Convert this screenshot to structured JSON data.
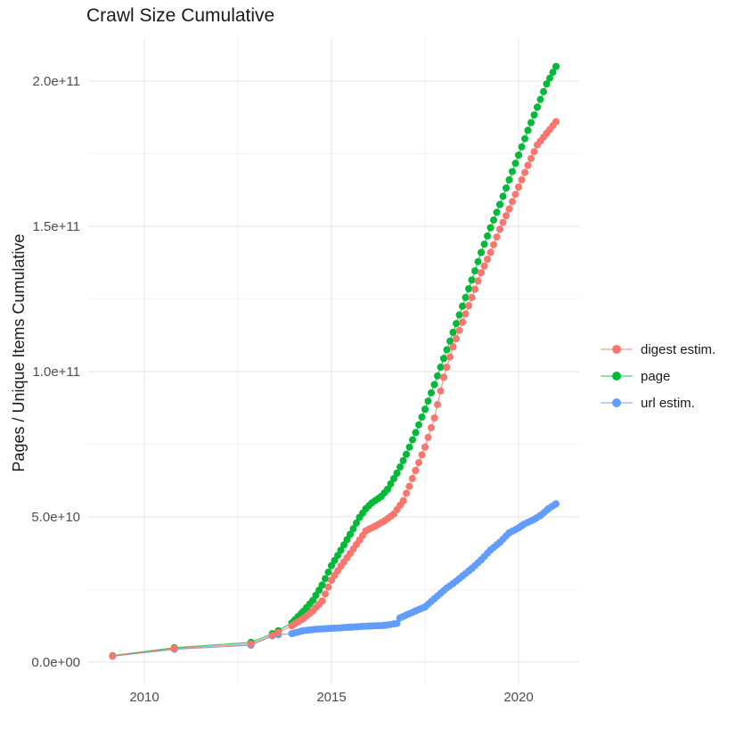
{
  "chart_data": {
    "type": "line",
    "title": "Crawl Size Cumulative",
    "xlabel": "",
    "ylabel": "Pages / Unique Items Cumulative",
    "y_value_unit": "1e9",
    "grid": true,
    "legend_position": "right",
    "x_domain": [
      2008.5,
      2021.62
    ],
    "y_domain": [
      -8,
      214.7
    ],
    "x_ticks": [
      {
        "value": 2010,
        "label": "2010"
      },
      {
        "value": 2015,
        "label": "2015"
      },
      {
        "value": 2020,
        "label": "2020"
      }
    ],
    "x_minor_ticks": [
      2012.5,
      2017.5
    ],
    "y_ticks": [
      {
        "value": 0,
        "label": "0.0e+00"
      },
      {
        "value": 50,
        "label": "5.0e+10"
      },
      {
        "value": 100,
        "label": "1.0e+11"
      },
      {
        "value": 150,
        "label": "1.5e+11"
      },
      {
        "value": 200,
        "label": "2.0e+11"
      }
    ],
    "y_minor_ticks": [
      25,
      75,
      125,
      175
    ],
    "dense_from": 2013.9,
    "dense_step": 0.08333,
    "draw_order": [
      2,
      1,
      0
    ],
    "series": [
      {
        "name": "digest estim.",
        "id": "digest-estim",
        "color": "#F8766D",
        "points": [
          [
            2009.15,
            2.1
          ],
          [
            2010.8,
            4.6
          ],
          [
            2012.85,
            6.2
          ],
          [
            2013.42,
            9.2
          ],
          [
            2013.58,
            10.2
          ],
          [
            2013.94,
            12.5
          ],
          [
            2014.25,
            15.0
          ],
          [
            2014.5,
            17.6
          ],
          [
            2014.75,
            21.0
          ],
          [
            2015.0,
            28.2
          ],
          [
            2015.25,
            33.0
          ],
          [
            2015.5,
            37.4
          ],
          [
            2015.75,
            42.0
          ],
          [
            2015.92,
            45.2
          ],
          [
            2016.17,
            46.8
          ],
          [
            2016.42,
            48.6
          ],
          [
            2016.67,
            51.0
          ],
          [
            2016.92,
            55.5
          ],
          [
            2017.08,
            60.5
          ],
          [
            2017.25,
            66.0
          ],
          [
            2017.5,
            74.0
          ],
          [
            2017.75,
            84.0
          ],
          [
            2018.0,
            98.0
          ],
          [
            2018.25,
            108.5
          ],
          [
            2018.5,
            117.0
          ],
          [
            2018.75,
            125.5
          ],
          [
            2019.0,
            134.0
          ],
          [
            2019.25,
            141.0
          ],
          [
            2019.5,
            149.0
          ],
          [
            2019.75,
            156.0
          ],
          [
            2020.0,
            163.5
          ],
          [
            2020.25,
            171.0
          ],
          [
            2020.5,
            178.0
          ],
          [
            2020.75,
            182.0
          ],
          [
            2021.0,
            186.0
          ]
        ]
      },
      {
        "name": "page",
        "id": "page",
        "color": "#00BA38",
        "points": [
          [
            2009.15,
            2.2
          ],
          [
            2010.8,
            4.9
          ],
          [
            2012.85,
            6.8
          ],
          [
            2013.42,
            9.8
          ],
          [
            2013.58,
            10.8
          ],
          [
            2013.94,
            13.5
          ],
          [
            2014.25,
            17.5
          ],
          [
            2014.5,
            21.2
          ],
          [
            2014.75,
            26.5
          ],
          [
            2015.0,
            33.2
          ],
          [
            2015.25,
            38.5
          ],
          [
            2015.5,
            44.0
          ],
          [
            2015.75,
            49.8
          ],
          [
            2015.92,
            52.8
          ],
          [
            2016.08,
            54.8
          ],
          [
            2016.33,
            57.0
          ],
          [
            2016.5,
            59.5
          ],
          [
            2016.75,
            65.0
          ],
          [
            2017.0,
            71.5
          ],
          [
            2017.25,
            79.0
          ],
          [
            2017.5,
            87.0
          ],
          [
            2017.75,
            95.5
          ],
          [
            2018.0,
            104.5
          ],
          [
            2018.25,
            113.5
          ],
          [
            2018.5,
            122.5
          ],
          [
            2018.75,
            131.5
          ],
          [
            2019.0,
            141.0
          ],
          [
            2019.25,
            149.5
          ],
          [
            2019.5,
            157.5
          ],
          [
            2019.75,
            166.0
          ],
          [
            2020.0,
            174.5
          ],
          [
            2020.25,
            183.0
          ],
          [
            2020.5,
            191.0
          ],
          [
            2020.75,
            199.0
          ],
          [
            2021.0,
            205.0
          ]
        ]
      },
      {
        "name": "url estim.",
        "id": "url-estim",
        "color": "#619CFF",
        "points": [
          [
            2009.15,
            2.0
          ],
          [
            2010.8,
            4.4
          ],
          [
            2012.85,
            5.8
          ],
          [
            2013.42,
            9.0
          ],
          [
            2013.58,
            9.4
          ],
          [
            2013.94,
            9.8
          ],
          [
            2014.25,
            10.8
          ],
          [
            2014.58,
            11.3
          ],
          [
            2015.0,
            11.6
          ],
          [
            2015.5,
            12.0
          ],
          [
            2016.0,
            12.4
          ],
          [
            2016.42,
            12.6
          ],
          [
            2016.75,
            13.3
          ],
          [
            2016.83,
            15.2
          ],
          [
            2017.0,
            16.2
          ],
          [
            2017.25,
            17.6
          ],
          [
            2017.5,
            19.0
          ],
          [
            2017.75,
            21.8
          ],
          [
            2018.08,
            25.5
          ],
          [
            2018.25,
            27.0
          ],
          [
            2018.5,
            29.6
          ],
          [
            2018.75,
            32.2
          ],
          [
            2019.0,
            35.2
          ],
          [
            2019.25,
            38.6
          ],
          [
            2019.5,
            41.2
          ],
          [
            2019.75,
            44.5
          ],
          [
            2020.0,
            46.2
          ],
          [
            2020.15,
            47.5
          ],
          [
            2020.4,
            49.0
          ],
          [
            2020.6,
            50.6
          ],
          [
            2020.8,
            52.8
          ],
          [
            2021.0,
            54.5
          ]
        ]
      }
    ]
  }
}
